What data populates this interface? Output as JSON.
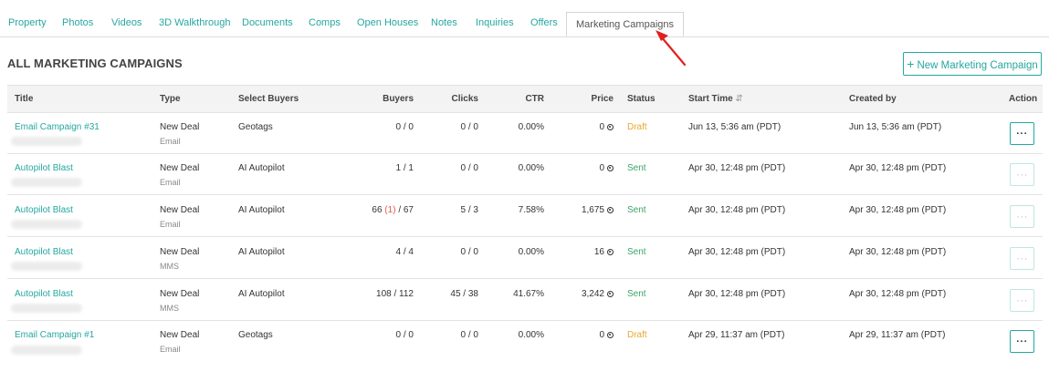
{
  "tabs": [
    {
      "label": "Property"
    },
    {
      "label": "Photos"
    },
    {
      "label": "Videos"
    },
    {
      "label": "3D Walkthrough"
    },
    {
      "label": "Documents"
    },
    {
      "label": "Comps"
    },
    {
      "label": "Open Houses"
    },
    {
      "label": "Notes"
    },
    {
      "label": "Inquiries"
    },
    {
      "label": "Offers"
    },
    {
      "label": "Marketing Campaigns"
    }
  ],
  "page": {
    "title": "ALL MARKETING CAMPAIGNS",
    "new_button_plus": "+",
    "new_button_label": "New Marketing Campaign"
  },
  "table": {
    "headers": {
      "title": "Title",
      "type": "Type",
      "select_buyers": "Select Buyers",
      "buyers": "Buyers",
      "clicks": "Clicks",
      "ctr": "CTR",
      "price": "Price",
      "status": "Status",
      "start_time": "Start Time",
      "sort_icon": "⇵",
      "created_by": "Created by",
      "action": "Action"
    },
    "rows": [
      {
        "title": "Email Campaign #31",
        "type": "New Deal",
        "subtype": "Email",
        "select_buyers": "Geotags",
        "buyers": "0 / 0",
        "clicks": "0 / 0",
        "ctr": "0.00%",
        "price": "0",
        "status": "Draft",
        "start_time": "Jun 13, 5:36 am (PDT)",
        "created_by": "Jun 13, 5:36 am (PDT)",
        "action": "···"
      },
      {
        "title": "Autopilot Blast",
        "type": "New Deal",
        "subtype": "Email",
        "select_buyers": "AI Autopilot",
        "buyers": "1 / 1",
        "clicks": "0 / 0",
        "ctr": "0.00%",
        "price": "0",
        "status": "Sent",
        "start_time": "Apr 30, 12:48 pm (PDT)",
        "created_by": "Apr 30, 12:48 pm (PDT)",
        "action": "···"
      },
      {
        "title": "Autopilot Blast",
        "type": "New Deal",
        "subtype": "Email",
        "select_buyers": "AI Autopilot",
        "buyers_a": "66",
        "buyers_b": "(1)",
        "buyers_c": "/ 67",
        "clicks": "5 / 3",
        "ctr": "7.58%",
        "price": "1,675",
        "status": "Sent",
        "start_time": "Apr 30, 12:48 pm (PDT)",
        "created_by": "Apr 30, 12:48 pm (PDT)",
        "action": "···"
      },
      {
        "title": "Autopilot Blast",
        "type": "New Deal",
        "subtype": "MMS",
        "select_buyers": "AI Autopilot",
        "buyers": "4 / 4",
        "clicks": "0 / 0",
        "ctr": "0.00%",
        "price": "16",
        "status": "Sent",
        "start_time": "Apr 30, 12:48 pm (PDT)",
        "created_by": "Apr 30, 12:48 pm (PDT)",
        "action": "···"
      },
      {
        "title": "Autopilot Blast",
        "type": "New Deal",
        "subtype": "MMS",
        "select_buyers": "AI Autopilot",
        "buyers": "108 / 112",
        "clicks": "45 / 38",
        "ctr": "41.67%",
        "price": "3,242",
        "status": "Sent",
        "start_time": "Apr 30, 12:48 pm (PDT)",
        "created_by": "Apr 30, 12:48 pm (PDT)",
        "action": "···"
      },
      {
        "title": "Email Campaign #1",
        "type": "New Deal",
        "subtype": "Email",
        "select_buyers": "Geotags",
        "buyers": "0 / 0",
        "clicks": "0 / 0",
        "ctr": "0.00%",
        "price": "0",
        "status": "Draft",
        "start_time": "Apr 29, 11:37 am (PDT)",
        "created_by": "Apr 29, 11:37 am (PDT)",
        "action": "···"
      }
    ]
  },
  "colors": {
    "accent": "#25a7a0",
    "draft": "#e9a92a",
    "sent": "#3ca36a",
    "annotation_arrow": "#e02020"
  },
  "icons": {
    "price_unit": "coin-icon",
    "annotation": "red-arrow-icon"
  }
}
